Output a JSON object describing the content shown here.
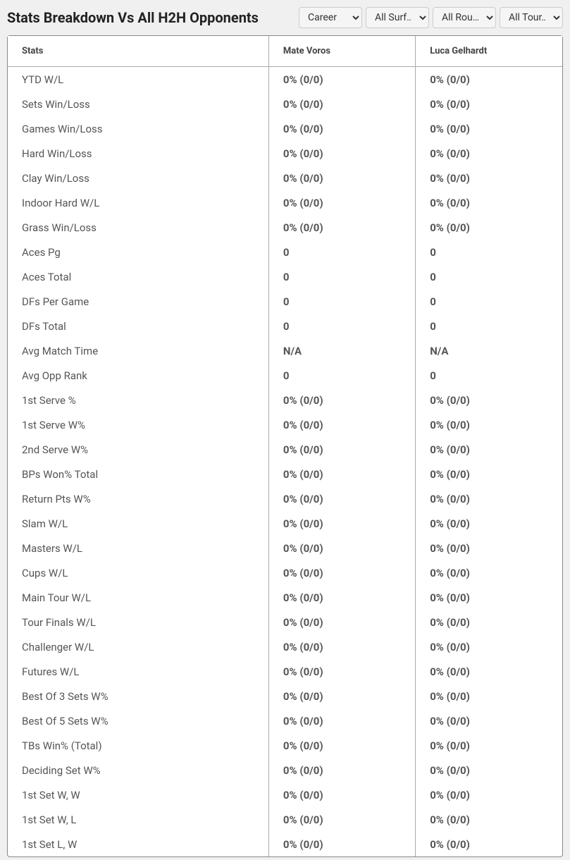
{
  "header": {
    "title": "Stats Breakdown Vs All H2H Opponents"
  },
  "filters": {
    "career": "Career",
    "surface": "All Surf…",
    "round": "All Rou…",
    "tour": "All Tour…"
  },
  "table": {
    "columns": {
      "stats": "Stats",
      "player1": "Mate Voros",
      "player2": "Luca Gelhardt"
    },
    "rows": [
      {
        "stat": "YTD W/L",
        "p1": "0% (0/0)",
        "p2": "0% (0/0)"
      },
      {
        "stat": "Sets Win/Loss",
        "p1": "0% (0/0)",
        "p2": "0% (0/0)"
      },
      {
        "stat": "Games Win/Loss",
        "p1": "0% (0/0)",
        "p2": "0% (0/0)"
      },
      {
        "stat": "Hard Win/Loss",
        "p1": "0% (0/0)",
        "p2": "0% (0/0)"
      },
      {
        "stat": "Clay Win/Loss",
        "p1": "0% (0/0)",
        "p2": "0% (0/0)"
      },
      {
        "stat": "Indoor Hard W/L",
        "p1": "0% (0/0)",
        "p2": "0% (0/0)"
      },
      {
        "stat": "Grass Win/Loss",
        "p1": "0% (0/0)",
        "p2": "0% (0/0)"
      },
      {
        "stat": "Aces Pg",
        "p1": "0",
        "p2": "0"
      },
      {
        "stat": "Aces Total",
        "p1": "0",
        "p2": "0"
      },
      {
        "stat": "DFs Per Game",
        "p1": "0",
        "p2": "0"
      },
      {
        "stat": "DFs Total",
        "p1": "0",
        "p2": "0"
      },
      {
        "stat": "Avg Match Time",
        "p1": "N/A",
        "p2": "N/A"
      },
      {
        "stat": "Avg Opp Rank",
        "p1": "0",
        "p2": "0"
      },
      {
        "stat": "1st Serve %",
        "p1": "0% (0/0)",
        "p2": "0% (0/0)"
      },
      {
        "stat": "1st Serve W%",
        "p1": "0% (0/0)",
        "p2": "0% (0/0)"
      },
      {
        "stat": "2nd Serve W%",
        "p1": "0% (0/0)",
        "p2": "0% (0/0)"
      },
      {
        "stat": "BPs Won% Total",
        "p1": "0% (0/0)",
        "p2": "0% (0/0)"
      },
      {
        "stat": "Return Pts W%",
        "p1": "0% (0/0)",
        "p2": "0% (0/0)"
      },
      {
        "stat": "Slam W/L",
        "p1": "0% (0/0)",
        "p2": "0% (0/0)"
      },
      {
        "stat": "Masters W/L",
        "p1": "0% (0/0)",
        "p2": "0% (0/0)"
      },
      {
        "stat": "Cups W/L",
        "p1": "0% (0/0)",
        "p2": "0% (0/0)"
      },
      {
        "stat": "Main Tour W/L",
        "p1": "0% (0/0)",
        "p2": "0% (0/0)"
      },
      {
        "stat": "Tour Finals W/L",
        "p1": "0% (0/0)",
        "p2": "0% (0/0)"
      },
      {
        "stat": "Challenger W/L",
        "p1": "0% (0/0)",
        "p2": "0% (0/0)"
      },
      {
        "stat": "Futures W/L",
        "p1": "0% (0/0)",
        "p2": "0% (0/0)"
      },
      {
        "stat": "Best Of 3 Sets W%",
        "p1": "0% (0/0)",
        "p2": "0% (0/0)"
      },
      {
        "stat": "Best Of 5 Sets W%",
        "p1": "0% (0/0)",
        "p2": "0% (0/0)"
      },
      {
        "stat": "TBs Win% (Total)",
        "p1": "0% (0/0)",
        "p2": "0% (0/0)"
      },
      {
        "stat": "Deciding Set W%",
        "p1": "0% (0/0)",
        "p2": "0% (0/0)"
      },
      {
        "stat": "1st Set W, W",
        "p1": "0% (0/0)",
        "p2": "0% (0/0)"
      },
      {
        "stat": "1st Set W, L",
        "p1": "0% (0/0)",
        "p2": "0% (0/0)"
      },
      {
        "stat": "1st Set L, W",
        "p1": "0% (0/0)",
        "p2": "0% (0/0)"
      }
    ]
  }
}
